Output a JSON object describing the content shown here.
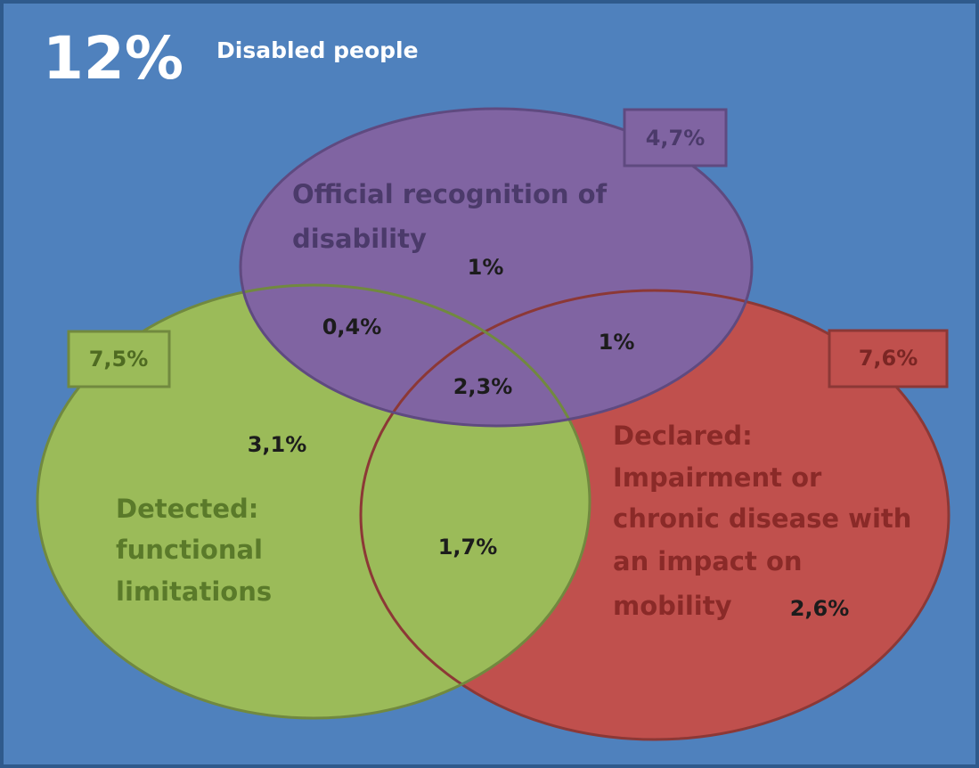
{
  "header": {
    "total": "12%",
    "title": "Disabled people"
  },
  "sets": [
    {
      "label_lines": [
        "Official recognition of",
        "disability"
      ],
      "total": "4,7%"
    },
    {
      "label_lines": [
        "Detected:",
        "functional",
        "limitations"
      ],
      "total": "7,5%"
    },
    {
      "label_lines": [
        "Declared:",
        "Impairment or",
        "chronic disease with",
        "an impact on",
        "mobility"
      ],
      "total": "7,6%"
    }
  ],
  "regions": [
    "1%",
    "0,4%",
    "1%",
    "2,3%",
    "3,1%",
    "1,7%",
    "2,6%"
  ]
}
